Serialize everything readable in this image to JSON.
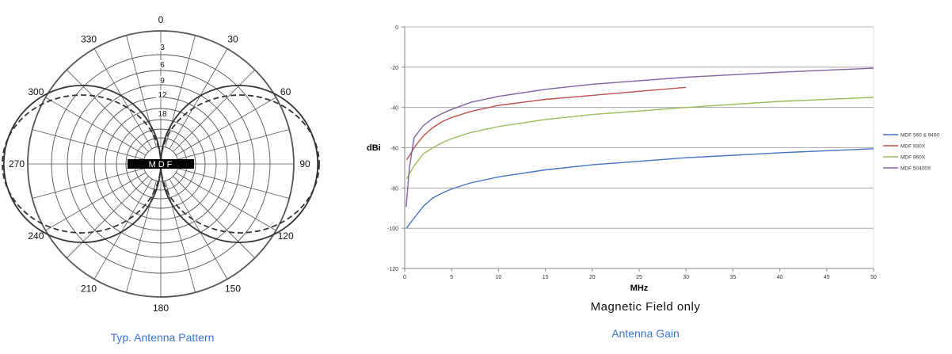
{
  "captions": {
    "polar": "Typ. Antenna Pattern",
    "gain_subtitle": "Magnetic Field only",
    "gain": "Antenna Gain"
  },
  "chart_data": [
    {
      "type": "polar",
      "center_label": "MDF",
      "angle_labels": [
        "0",
        "30",
        "60",
        "90",
        "120",
        "150",
        "180",
        "210",
        "240",
        "270",
        "300",
        "330"
      ],
      "radial_labels": [
        "3",
        "6",
        "9",
        "12",
        "18"
      ],
      "series": [
        {
          "style": "solid",
          "pattern": "figure-eight, lobes at 90 and 270"
        },
        {
          "style": "dashed",
          "pattern": "figure-eight, lobes at 90 and 270"
        }
      ],
      "colors": {
        "line": "#333333",
        "grid": "#555555"
      }
    },
    {
      "type": "line",
      "xlabel": "MHz",
      "ylabel": "dBi",
      "xlim": [
        0,
        50
      ],
      "ylim": [
        -120,
        0
      ],
      "x_ticks": [
        0,
        5,
        10,
        15,
        20,
        25,
        30,
        35,
        40,
        45,
        50
      ],
      "y_ticks": [
        0,
        -20,
        -40,
        -60,
        -80,
        -100,
        -120
      ],
      "legend": "right",
      "grid": true,
      "series": [
        {
          "name": "MDF 560 & 9400",
          "color": "#4472c4",
          "x": [
            0.2,
            0.5,
            1,
            2,
            3,
            4,
            5,
            7,
            10,
            15,
            20,
            30,
            40,
            50
          ],
          "y": [
            -100,
            -98,
            -95,
            -89,
            -85,
            -82.5,
            -80.5,
            -77.5,
            -74.5,
            -71,
            -68.5,
            -65,
            -62.5,
            -60.5
          ]
        },
        {
          "name": "MDF 930X",
          "color": "#c0504d",
          "x": [
            0.2,
            0.5,
            1,
            2,
            3,
            4,
            5,
            7,
            10,
            15,
            20,
            25,
            30
          ],
          "y": [
            -66,
            -64,
            -60,
            -54,
            -50,
            -47,
            -45,
            -42,
            -39,
            -36,
            -34,
            -32,
            -30
          ]
        },
        {
          "name": "MDF 960X",
          "color": "#9bbb59",
          "x": [
            0.2,
            0.5,
            1,
            2,
            3,
            4,
            5,
            7,
            10,
            15,
            20,
            30,
            40,
            50
          ],
          "y": [
            -75.5,
            -73,
            -69,
            -63,
            -60,
            -57.5,
            -55.5,
            -52.5,
            -49.5,
            -46,
            -43.5,
            -40,
            -37,
            -35
          ]
        },
        {
          "name": "MDF 50400X",
          "color": "#8064a2",
          "x": [
            0.15,
            0.5,
            1,
            2,
            3,
            4,
            5,
            7,
            10,
            15,
            20,
            30,
            40,
            50
          ],
          "y": [
            -89.5,
            -70,
            -55,
            -49,
            -45.5,
            -43,
            -41,
            -37.5,
            -34.5,
            -31,
            -28.5,
            -25,
            -22.5,
            -20.5
          ]
        }
      ]
    }
  ]
}
